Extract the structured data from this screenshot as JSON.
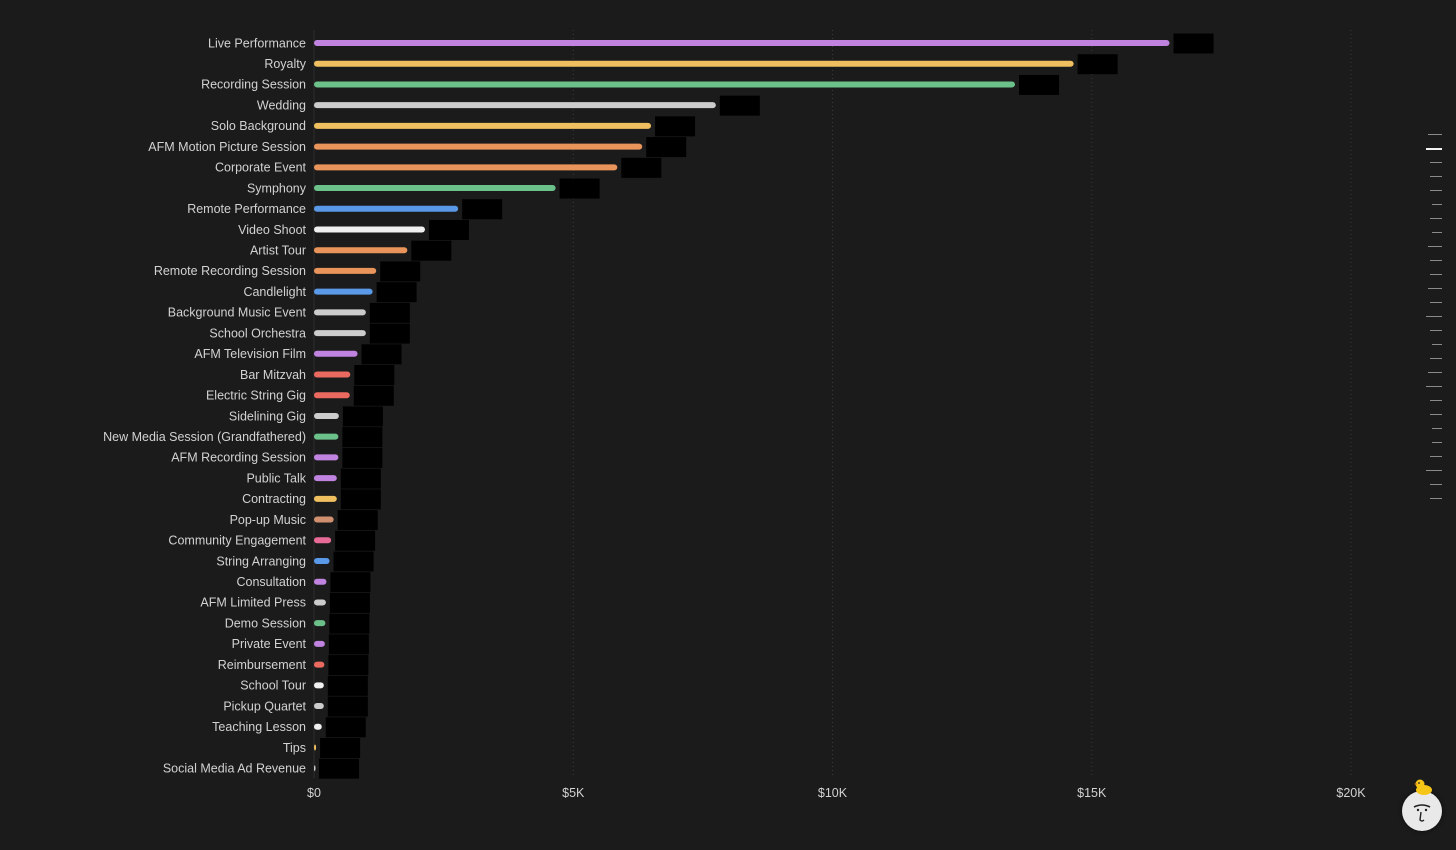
{
  "chart_data": {
    "type": "bar",
    "orientation": "horizontal",
    "categories": [
      "Live Performance",
      "Royalty",
      "Recording Session",
      "Wedding",
      "Solo Background",
      "AFM Motion Picture Session",
      "Corporate Event",
      "Symphony",
      "Remote Performance",
      "Video Shoot",
      "Artist Tour",
      "Remote Recording Session",
      "Candlelight",
      "Background Music Event",
      "School Orchestra",
      "AFM Television Film",
      "Bar Mitzvah",
      "Electric String Gig",
      "Sidelining Gig",
      "New Media Session (Grandfathered)",
      "AFM Recording Session",
      "Public Talk",
      "Contracting",
      "Pop-up Music",
      "Community Engagement",
      "String Arranging",
      "Consultation",
      "AFM Limited Press",
      "Demo Session",
      "Private Event",
      "Reimbursement",
      "School Tour",
      "Pickup Quartet",
      "Teaching Lesson",
      "Tips",
      "Social Media Ad Revenue"
    ],
    "values": [
      16500,
      14650,
      13520,
      7750,
      6500,
      6330,
      5850,
      4660,
      2780,
      2140,
      1800,
      1200,
      1130,
      1000,
      1000,
      840,
      700,
      690,
      480,
      470,
      470,
      440,
      440,
      380,
      330,
      300,
      240,
      230,
      220,
      210,
      200,
      190,
      190,
      150,
      40,
      20
    ],
    "colors": [
      "#c084e0",
      "#f0c060",
      "#6cc08a",
      "#cccccc",
      "#f0c060",
      "#e8945a",
      "#e8945a",
      "#6cc08a",
      "#5a98e8",
      "#f0f0f0",
      "#e8945a",
      "#e8945a",
      "#5a98e8",
      "#cccccc",
      "#cccccc",
      "#c084e0",
      "#ea6a60",
      "#ea6a60",
      "#cccccc",
      "#6cc08a",
      "#c084e0",
      "#c084e0",
      "#f0c060",
      "#d09070",
      "#e86a96",
      "#5a98e8",
      "#c084e0",
      "#cccccc",
      "#6cc08a",
      "#c084e0",
      "#ea6a60",
      "#f0f0f0",
      "#cccccc",
      "#f0f0f0",
      "#f0c060",
      "#cccccc"
    ],
    "x_ticks": [
      "$0",
      "$5K",
      "$10K",
      "$15K",
      "$20K"
    ],
    "x_tick_values": [
      0,
      5000,
      10000,
      15000,
      20000
    ],
    "xlim": [
      0,
      20000
    ],
    "title": "",
    "xlabel": "",
    "ylabel": "",
    "grid": "vertical dotted",
    "legend": "none",
    "value_labels": "redacted (black boxes)"
  },
  "colors": {
    "background": "#1b1b1b",
    "text": "#d2d2d2",
    "grid": "#3a3a3a",
    "redaction": "#000000"
  }
}
